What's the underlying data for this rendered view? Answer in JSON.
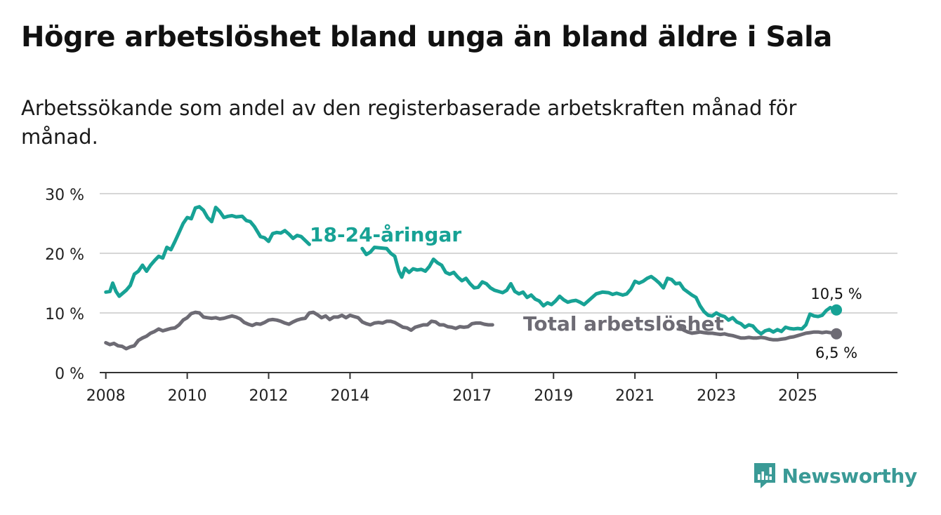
{
  "title": "Högre arbetslöshet bland unga än bland äldre i Sala",
  "subtitle": "Arbetssökande som andel av den registerbaserade arbetskraften månad för månad.",
  "brand": "Newsworthy",
  "colors": {
    "youth": "#17a295",
    "total": "#6d6b74",
    "grid": "#d6d6d6",
    "axis": "#333333"
  },
  "chart_data": {
    "type": "line",
    "title": "Högre arbetslöshet bland unga än bland äldre i Sala",
    "xlabel": "",
    "ylabel": "",
    "xlim": [
      2007.85,
      2027.45
    ],
    "ylim": [
      0,
      30
    ],
    "yticks": [
      0,
      10,
      20,
      30
    ],
    "ytick_labels": [
      "0 %",
      "10 %",
      "20 %",
      "30 %"
    ],
    "xticks": [
      2008,
      2010,
      2012,
      2014,
      2017,
      2019,
      2021,
      2023,
      2025
    ],
    "xtick_labels": [
      "2008",
      "2010",
      "2012",
      "2014",
      "2017",
      "2019",
      "2021",
      "2023",
      "2025"
    ],
    "grid": true,
    "series": [
      {
        "name": "18-24-åringar",
        "label": "18-24-åringar",
        "end_label": "10,5 %",
        "points": [
          [
            2008.0,
            13.5
          ],
          [
            2008.1,
            13.6
          ],
          [
            2008.17,
            15.0
          ],
          [
            2008.25,
            13.6
          ],
          [
            2008.33,
            12.8
          ],
          [
            2008.5,
            13.8
          ],
          [
            2008.6,
            14.6
          ],
          [
            2008.7,
            16.5
          ],
          [
            2008.8,
            17.0
          ],
          [
            2008.9,
            18.0
          ],
          [
            2009.0,
            17.0
          ],
          [
            2009.1,
            18.0
          ],
          [
            2009.2,
            18.8
          ],
          [
            2009.3,
            19.5
          ],
          [
            2009.4,
            19.2
          ],
          [
            2009.5,
            21.0
          ],
          [
            2009.6,
            20.6
          ],
          [
            2009.7,
            22.0
          ],
          [
            2009.8,
            23.5
          ],
          [
            2009.9,
            25.0
          ],
          [
            2010.0,
            26.0
          ],
          [
            2010.1,
            25.8
          ],
          [
            2010.2,
            27.6
          ],
          [
            2010.3,
            27.8
          ],
          [
            2010.4,
            27.2
          ],
          [
            2010.5,
            26.0
          ],
          [
            2010.6,
            25.3
          ],
          [
            2010.7,
            27.7
          ],
          [
            2010.8,
            27.0
          ],
          [
            2010.9,
            26.0
          ],
          [
            2011.0,
            26.2
          ],
          [
            2011.1,
            26.3
          ],
          [
            2011.2,
            26.1
          ],
          [
            2011.35,
            26.2
          ],
          [
            2011.45,
            25.5
          ],
          [
            2011.55,
            25.3
          ],
          [
            2011.65,
            24.5
          ],
          [
            2011.8,
            22.8
          ],
          [
            2011.9,
            22.6
          ],
          [
            2012.0,
            22.0
          ],
          [
            2012.1,
            23.3
          ],
          [
            2012.2,
            23.5
          ],
          [
            2012.3,
            23.4
          ],
          [
            2012.4,
            23.8
          ],
          [
            2012.5,
            23.2
          ],
          [
            2012.6,
            22.5
          ],
          [
            2012.7,
            23.0
          ],
          [
            2012.8,
            22.8
          ],
          [
            2013.0,
            21.5
          ],
          [
            2014.3,
            20.8
          ],
          [
            2014.4,
            19.8
          ],
          [
            2014.5,
            20.2
          ],
          [
            2014.6,
            21.0
          ],
          [
            2014.9,
            20.8
          ],
          [
            2015.0,
            20.0
          ],
          [
            2015.1,
            19.5
          ],
          [
            2015.2,
            17.0
          ],
          [
            2015.27,
            16.0
          ],
          [
            2015.35,
            17.5
          ],
          [
            2015.45,
            16.8
          ],
          [
            2015.55,
            17.4
          ],
          [
            2015.65,
            17.2
          ],
          [
            2015.75,
            17.3
          ],
          [
            2015.85,
            17.0
          ],
          [
            2015.95,
            17.8
          ],
          [
            2016.05,
            19.0
          ],
          [
            2016.15,
            18.4
          ],
          [
            2016.25,
            18.0
          ],
          [
            2016.35,
            16.8
          ],
          [
            2016.45,
            16.5
          ],
          [
            2016.55,
            16.8
          ],
          [
            2016.65,
            16.0
          ],
          [
            2016.75,
            15.4
          ],
          [
            2016.85,
            15.8
          ],
          [
            2016.95,
            14.9
          ],
          [
            2017.05,
            14.2
          ],
          [
            2017.15,
            14.3
          ],
          [
            2017.25,
            15.2
          ],
          [
            2017.35,
            14.9
          ],
          [
            2017.45,
            14.2
          ],
          [
            2017.55,
            13.8
          ],
          [
            2017.65,
            13.6
          ],
          [
            2017.75,
            13.4
          ],
          [
            2017.85,
            13.8
          ],
          [
            2017.95,
            14.9
          ],
          [
            2018.05,
            13.6
          ],
          [
            2018.15,
            13.2
          ],
          [
            2018.25,
            13.5
          ],
          [
            2018.35,
            12.6
          ],
          [
            2018.45,
            13.0
          ],
          [
            2018.55,
            12.3
          ],
          [
            2018.65,
            12.0
          ],
          [
            2018.75,
            11.2
          ],
          [
            2018.85,
            11.7
          ],
          [
            2018.95,
            11.4
          ],
          [
            2019.05,
            12.0
          ],
          [
            2019.15,
            12.8
          ],
          [
            2019.25,
            12.2
          ],
          [
            2019.35,
            11.8
          ],
          [
            2019.45,
            12.0
          ],
          [
            2019.55,
            12.1
          ],
          [
            2019.65,
            11.8
          ],
          [
            2019.75,
            11.4
          ],
          [
            2019.85,
            12.0
          ],
          [
            2019.95,
            12.6
          ],
          [
            2020.05,
            13.2
          ],
          [
            2020.2,
            13.5
          ],
          [
            2020.35,
            13.4
          ],
          [
            2020.45,
            13.1
          ],
          [
            2020.55,
            13.3
          ],
          [
            2020.7,
            13.0
          ],
          [
            2020.8,
            13.2
          ],
          [
            2020.9,
            14.0
          ],
          [
            2021.0,
            15.3
          ],
          [
            2021.1,
            15.0
          ],
          [
            2021.2,
            15.3
          ],
          [
            2021.3,
            15.8
          ],
          [
            2021.4,
            16.1
          ],
          [
            2021.5,
            15.6
          ],
          [
            2021.6,
            15.0
          ],
          [
            2021.7,
            14.2
          ],
          [
            2021.8,
            15.8
          ],
          [
            2021.9,
            15.6
          ],
          [
            2022.0,
            14.9
          ],
          [
            2022.1,
            15.0
          ],
          [
            2022.2,
            14.0
          ],
          [
            2022.3,
            13.5
          ],
          [
            2022.4,
            13.0
          ],
          [
            2022.5,
            12.6
          ],
          [
            2022.6,
            11.2
          ],
          [
            2022.7,
            10.2
          ],
          [
            2022.8,
            9.6
          ],
          [
            2022.9,
            9.5
          ],
          [
            2023.0,
            10.0
          ],
          [
            2023.1,
            9.6
          ],
          [
            2023.2,
            9.4
          ],
          [
            2023.3,
            8.8
          ],
          [
            2023.4,
            9.2
          ],
          [
            2023.5,
            8.5
          ],
          [
            2023.6,
            8.2
          ],
          [
            2023.7,
            7.6
          ],
          [
            2023.8,
            8.0
          ],
          [
            2023.9,
            7.8
          ],
          [
            2024.0,
            7.0
          ],
          [
            2024.1,
            6.5
          ],
          [
            2024.2,
            7.0
          ],
          [
            2024.3,
            7.2
          ],
          [
            2024.4,
            6.8
          ],
          [
            2024.5,
            7.2
          ],
          [
            2024.6,
            6.9
          ],
          [
            2024.7,
            7.6
          ],
          [
            2024.8,
            7.4
          ],
          [
            2024.9,
            7.3
          ],
          [
            2025.0,
            7.4
          ],
          [
            2025.1,
            7.3
          ],
          [
            2025.2,
            8.0
          ],
          [
            2025.3,
            9.8
          ],
          [
            2025.4,
            9.5
          ],
          [
            2025.5,
            9.4
          ],
          [
            2025.6,
            9.6
          ],
          [
            2025.7,
            10.4
          ],
          [
            2025.8,
            10.9
          ],
          [
            2025.95,
            10.5
          ]
        ]
      },
      {
        "name": "Total arbetslöshet",
        "label": "Total arbetslöshet",
        "end_label": "6,5 %",
        "points": [
          [
            2008.0,
            5.0
          ],
          [
            2008.1,
            4.7
          ],
          [
            2008.2,
            4.9
          ],
          [
            2008.3,
            4.5
          ],
          [
            2008.4,
            4.4
          ],
          [
            2008.5,
            4.0
          ],
          [
            2008.6,
            4.3
          ],
          [
            2008.7,
            4.5
          ],
          [
            2008.8,
            5.4
          ],
          [
            2008.9,
            5.8
          ],
          [
            2009.0,
            6.1
          ],
          [
            2009.1,
            6.6
          ],
          [
            2009.2,
            6.9
          ],
          [
            2009.3,
            7.3
          ],
          [
            2009.4,
            7.0
          ],
          [
            2009.5,
            7.2
          ],
          [
            2009.6,
            7.4
          ],
          [
            2009.7,
            7.5
          ],
          [
            2009.8,
            8.0
          ],
          [
            2009.9,
            8.8
          ],
          [
            2010.0,
            9.2
          ],
          [
            2010.1,
            9.9
          ],
          [
            2010.2,
            10.1
          ],
          [
            2010.3,
            10.0
          ],
          [
            2010.4,
            9.3
          ],
          [
            2010.5,
            9.2
          ],
          [
            2010.6,
            9.1
          ],
          [
            2010.7,
            9.2
          ],
          [
            2010.8,
            9.0
          ],
          [
            2010.9,
            9.1
          ],
          [
            2011.0,
            9.3
          ],
          [
            2011.1,
            9.5
          ],
          [
            2011.2,
            9.3
          ],
          [
            2011.3,
            9.0
          ],
          [
            2011.4,
            8.4
          ],
          [
            2011.5,
            8.1
          ],
          [
            2011.6,
            7.9
          ],
          [
            2011.7,
            8.2
          ],
          [
            2011.8,
            8.1
          ],
          [
            2011.9,
            8.4
          ],
          [
            2012.0,
            8.8
          ],
          [
            2012.1,
            8.9
          ],
          [
            2012.2,
            8.8
          ],
          [
            2012.3,
            8.6
          ],
          [
            2012.4,
            8.3
          ],
          [
            2012.5,
            8.1
          ],
          [
            2012.6,
            8.5
          ],
          [
            2012.7,
            8.8
          ],
          [
            2012.8,
            9.0
          ],
          [
            2012.9,
            9.1
          ],
          [
            2013.0,
            10.0
          ],
          [
            2013.1,
            10.1
          ],
          [
            2013.2,
            9.7
          ],
          [
            2013.3,
            9.2
          ],
          [
            2013.4,
            9.5
          ],
          [
            2013.5,
            8.9
          ],
          [
            2013.6,
            9.3
          ],
          [
            2013.7,
            9.3
          ],
          [
            2013.8,
            9.6
          ],
          [
            2013.9,
            9.2
          ],
          [
            2014.0,
            9.6
          ],
          [
            2014.1,
            9.4
          ],
          [
            2014.2,
            9.2
          ],
          [
            2014.3,
            8.5
          ],
          [
            2014.4,
            8.2
          ],
          [
            2014.5,
            8.0
          ],
          [
            2014.6,
            8.3
          ],
          [
            2014.7,
            8.4
          ],
          [
            2014.8,
            8.3
          ],
          [
            2014.9,
            8.6
          ],
          [
            2015.0,
            8.6
          ],
          [
            2015.1,
            8.4
          ],
          [
            2015.2,
            8.0
          ],
          [
            2015.3,
            7.6
          ],
          [
            2015.4,
            7.5
          ],
          [
            2015.5,
            7.1
          ],
          [
            2015.6,
            7.6
          ],
          [
            2015.7,
            7.8
          ],
          [
            2015.8,
            8.0
          ],
          [
            2015.9,
            8.0
          ],
          [
            2016.0,
            8.6
          ],
          [
            2016.1,
            8.5
          ],
          [
            2016.2,
            8.0
          ],
          [
            2016.3,
            8.0
          ],
          [
            2016.4,
            7.7
          ],
          [
            2016.5,
            7.6
          ],
          [
            2016.6,
            7.4
          ],
          [
            2016.7,
            7.7
          ],
          [
            2016.8,
            7.6
          ],
          [
            2016.9,
            7.7
          ],
          [
            2017.0,
            8.2
          ],
          [
            2017.1,
            8.3
          ],
          [
            2017.2,
            8.3
          ],
          [
            2017.3,
            8.1
          ],
          [
            2017.4,
            8.0
          ],
          [
            2017.5,
            8.0
          ],
          [
            2022.1,
            7.6
          ],
          [
            2022.2,
            7.1
          ],
          [
            2022.3,
            6.8
          ],
          [
            2022.4,
            6.6
          ],
          [
            2022.5,
            6.7
          ],
          [
            2022.6,
            6.8
          ],
          [
            2022.7,
            6.7
          ],
          [
            2022.8,
            6.6
          ],
          [
            2022.9,
            6.6
          ],
          [
            2023.0,
            6.5
          ],
          [
            2023.1,
            6.4
          ],
          [
            2023.2,
            6.5
          ],
          [
            2023.3,
            6.3
          ],
          [
            2023.4,
            6.2
          ],
          [
            2023.5,
            6.0
          ],
          [
            2023.6,
            5.8
          ],
          [
            2023.7,
            5.8
          ],
          [
            2023.8,
            5.9
          ],
          [
            2023.9,
            5.8
          ],
          [
            2024.0,
            5.8
          ],
          [
            2024.1,
            5.9
          ],
          [
            2024.2,
            5.8
          ],
          [
            2024.3,
            5.6
          ],
          [
            2024.4,
            5.5
          ],
          [
            2024.5,
            5.5
          ],
          [
            2024.6,
            5.6
          ],
          [
            2024.7,
            5.7
          ],
          [
            2024.8,
            5.9
          ],
          [
            2024.9,
            6.0
          ],
          [
            2025.0,
            6.2
          ],
          [
            2025.1,
            6.4
          ],
          [
            2025.2,
            6.6
          ],
          [
            2025.3,
            6.7
          ],
          [
            2025.4,
            6.8
          ],
          [
            2025.5,
            6.8
          ],
          [
            2025.6,
            6.7
          ],
          [
            2025.7,
            6.8
          ],
          [
            2025.8,
            6.7
          ],
          [
            2025.95,
            6.5
          ]
        ]
      }
    ]
  }
}
